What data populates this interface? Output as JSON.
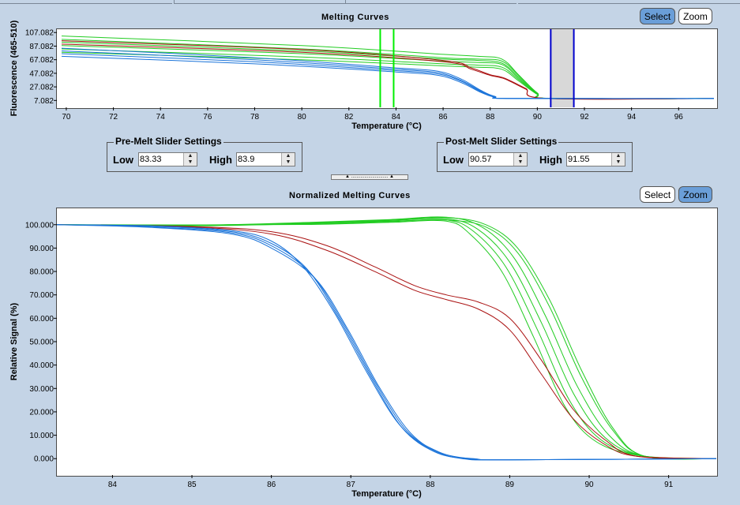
{
  "top_chart": {
    "title": "Melting Curves",
    "ylabel": "Fluorescence (465-510)",
    "xlabel": "Temperature (°C)",
    "select_label": "Select",
    "zoom_label": "Zoom",
    "active_mode": "select"
  },
  "pre_melt": {
    "title": "Pre-Melt Slider Settings",
    "low_label": "Low",
    "low_value": "83.33",
    "high_label": "High",
    "high_value": "83.9"
  },
  "post_melt": {
    "title": "Post-Melt Slider Settings",
    "low_label": "Low",
    "low_value": "90.57",
    "high_label": "High",
    "high_value": "91.55"
  },
  "splitter_label": "▲ ............................ ▲",
  "bottom_chart": {
    "title": "Normalized Melting Curves",
    "ylabel": "Relative Signal (%)",
    "xlabel": "Temperature (°C)",
    "select_label": "Select",
    "zoom_label": "Zoom",
    "active_mode": "zoom"
  },
  "colors": {
    "green": "#22cc22",
    "blue": "#1a73d9",
    "red": "#aa1111",
    "slider_green": "#00ee00",
    "slider_blue": "#0000cc",
    "shade": "#d8d8d8"
  },
  "chart_data": [
    {
      "type": "line",
      "title": "Melting Curves",
      "xlabel": "Temperature (°C)",
      "ylabel": "Fluorescence (465-510)",
      "xlim": [
        69.6,
        97.6
      ],
      "ylim": [
        -3,
        112
      ],
      "x_ticks": [
        70,
        72,
        74,
        76,
        78,
        80,
        82,
        84,
        86,
        88,
        90,
        92,
        94,
        96
      ],
      "y_ticks": [
        7.082,
        27.082,
        47.082,
        67.082,
        87.082,
        107.082
      ],
      "y_tick_labels": [
        "7.082",
        "27.082",
        "47.082",
        "67.082",
        "87.082",
        "107.082"
      ],
      "pre_melt_sliders": [
        83.33,
        83.9
      ],
      "post_melt_sliders": [
        90.57,
        91.55
      ],
      "series": [
        {
          "color": "green",
          "x": [
            69.8,
            80,
            86,
            87.5,
            88.5,
            89.2,
            90,
            90.6,
            97.5
          ],
          "y": [
            102,
            88,
            75,
            72,
            68,
            45,
            18,
            10,
            10
          ]
        },
        {
          "color": "green",
          "x": [
            69.8,
            80,
            86,
            87.5,
            88.5,
            89.2,
            90,
            90.6,
            97.5
          ],
          "y": [
            97,
            83,
            70,
            68,
            65,
            44,
            18,
            10,
            10
          ]
        },
        {
          "color": "green",
          "x": [
            69.8,
            80,
            86,
            87.5,
            88.5,
            89.2,
            90,
            90.6,
            97.5
          ],
          "y": [
            93,
            80,
            68,
            66,
            62,
            42,
            17,
            10,
            10
          ]
        },
        {
          "color": "green",
          "x": [
            69.8,
            80,
            86,
            87.5,
            88.5,
            89.2,
            90,
            90.6,
            97.5
          ],
          "y": [
            88,
            76,
            65,
            63,
            60,
            40,
            17,
            10,
            10
          ]
        },
        {
          "color": "green",
          "x": [
            69.8,
            80,
            86,
            87.5,
            88.5,
            89.2,
            90,
            90.6,
            97.5
          ],
          "y": [
            83,
            71,
            61,
            59,
            56,
            38,
            16,
            10,
            10
          ]
        },
        {
          "color": "green",
          "x": [
            69.8,
            80,
            86,
            87.5,
            88.5,
            89.2,
            90,
            90.6,
            97.5
          ],
          "y": [
            78,
            67,
            58,
            56,
            53,
            36,
            16,
            10,
            10
          ]
        },
        {
          "color": "red",
          "x": [
            69.8,
            80,
            86,
            87.2,
            88,
            88.6,
            89.5,
            90.4,
            97.5
          ],
          "y": [
            95,
            82,
            66,
            55,
            45,
            40,
            25,
            10,
            10
          ]
        },
        {
          "color": "red",
          "x": [
            69.8,
            80,
            86,
            87.2,
            88,
            88.6,
            89.5,
            90.4,
            97.5
          ],
          "y": [
            90,
            78,
            64,
            53,
            44,
            39,
            24,
            10,
            10
          ]
        },
        {
          "color": "blue",
          "x": [
            69.8,
            78,
            84,
            85.8,
            86.8,
            87.6,
            88.2,
            89,
            97.5
          ],
          "y": [
            84,
            70,
            55,
            50,
            38,
            22,
            13,
            10,
            10
          ]
        },
        {
          "color": "blue",
          "x": [
            69.8,
            78,
            84,
            85.8,
            86.8,
            87.6,
            88.2,
            89,
            97.5
          ],
          "y": [
            80,
            67,
            53,
            48,
            36,
            21,
            13,
            10,
            10
          ]
        },
        {
          "color": "blue",
          "x": [
            69.8,
            78,
            84,
            85.8,
            86.8,
            87.6,
            88.2,
            89,
            97.5
          ],
          "y": [
            76,
            64,
            51,
            46,
            35,
            20,
            12,
            10,
            10
          ]
        },
        {
          "color": "blue",
          "x": [
            69.8,
            78,
            84,
            85.8,
            86.8,
            87.6,
            88.2,
            89,
            97.5
          ],
          "y": [
            72,
            61,
            49,
            44,
            33,
            19,
            12,
            10,
            10
          ]
        }
      ]
    },
    {
      "type": "line",
      "title": "Normalized Melting Curves",
      "xlabel": "Temperature (°C)",
      "ylabel": "Relative Signal (%)",
      "xlim": [
        83.3,
        91.6
      ],
      "ylim": [
        -7,
        107
      ],
      "x_ticks": [
        84,
        85,
        86,
        87,
        88,
        89,
        90,
        91
      ],
      "y_ticks": [
        0,
        10,
        20,
        30,
        40,
        50,
        60,
        70,
        80,
        90,
        100
      ],
      "y_tick_labels": [
        "0.000",
        "10.000",
        "20.000",
        "30.000",
        "40.000",
        "50.000",
        "60.000",
        "70.000",
        "80.000",
        "90.000",
        "100.000"
      ],
      "series": [
        {
          "color": "green",
          "x": [
            83.3,
            85,
            86.5,
            87.5,
            88.2,
            88.7,
            89.1,
            89.5,
            89.9,
            90.3,
            90.7,
            91.6
          ],
          "y": [
            100,
            99.5,
            100.5,
            101.5,
            102,
            99,
            88,
            65,
            35,
            12,
            1,
            0
          ]
        },
        {
          "color": "green",
          "x": [
            83.3,
            85,
            86.5,
            87.5,
            88.2,
            88.7,
            89.1,
            89.5,
            89.9,
            90.3,
            90.7,
            91.6
          ],
          "y": [
            100,
            99.6,
            100.8,
            102,
            103,
            100,
            90,
            68,
            38,
            13,
            1,
            0
          ]
        },
        {
          "color": "green",
          "x": [
            83.3,
            85,
            86.5,
            87.5,
            88.2,
            88.65,
            89.05,
            89.45,
            89.85,
            90.25,
            90.7,
            91.6
          ],
          "y": [
            100,
            99.7,
            101,
            102.2,
            103.2,
            99,
            86,
            61,
            31,
            10,
            1,
            0
          ]
        },
        {
          "color": "green",
          "x": [
            83.3,
            85,
            86.5,
            87.5,
            88.2,
            88.6,
            89,
            89.4,
            89.8,
            90.2,
            90.7,
            91.6
          ],
          "y": [
            100,
            99.8,
            100.6,
            101.8,
            102.5,
            98,
            84,
            58,
            28,
            9,
            1,
            0
          ]
        },
        {
          "color": "green",
          "x": [
            83.3,
            85,
            86.5,
            87.5,
            88.2,
            88.55,
            88.95,
            89.35,
            89.75,
            90.15,
            90.7,
            91.6
          ],
          "y": [
            100,
            99.9,
            100.3,
            101.3,
            102,
            97,
            82,
            55,
            25,
            8,
            1,
            0
          ]
        },
        {
          "color": "green",
          "x": [
            83.3,
            85,
            86.5,
            87.5,
            88.2,
            88.5,
            88.9,
            89.3,
            89.7,
            90.1,
            90.7,
            91.6
          ],
          "y": [
            100,
            99.9,
            100.1,
            101,
            101.5,
            96,
            80,
            52,
            22,
            7,
            1,
            0
          ]
        },
        {
          "color": "red",
          "x": [
            83.3,
            85,
            86,
            86.7,
            87.3,
            87.8,
            88.2,
            88.6,
            89,
            89.4,
            89.8,
            90.2,
            90.6,
            91.6
          ],
          "y": [
            100,
            99,
            96,
            89,
            80,
            72,
            68,
            64,
            55,
            36,
            17,
            6,
            1,
            0
          ]
        },
        {
          "color": "red",
          "x": [
            83.3,
            85,
            86,
            86.7,
            87.3,
            87.8,
            88.2,
            88.6,
            89,
            89.4,
            89.8,
            90.2,
            90.6,
            91.6
          ],
          "y": [
            100,
            99.2,
            97,
            91,
            82,
            74,
            70,
            67,
            60,
            42,
            21,
            8,
            1,
            0
          ]
        },
        {
          "color": "blue",
          "x": [
            83.3,
            84.5,
            85.5,
            86,
            86.4,
            86.8,
            87.2,
            87.6,
            88,
            88.4,
            89,
            91.6
          ],
          "y": [
            100,
            99.5,
            97.5,
            93,
            82,
            62,
            37,
            15,
            4,
            0,
            -0.5,
            0
          ]
        },
        {
          "color": "blue",
          "x": [
            83.3,
            84.5,
            85.5,
            86,
            86.45,
            86.85,
            87.25,
            87.65,
            88.05,
            88.45,
            89,
            91.6
          ],
          "y": [
            100,
            99.3,
            97,
            92,
            81,
            60,
            35,
            13,
            3,
            0,
            -0.5,
            0
          ]
        },
        {
          "color": "blue",
          "x": [
            83.3,
            84.5,
            85.5,
            86,
            86.5,
            86.9,
            87.3,
            87.7,
            88.1,
            88.5,
            89,
            91.6
          ],
          "y": [
            100,
            99,
            96.5,
            91,
            79,
            58,
            33,
            12,
            3,
            0,
            -0.5,
            0
          ]
        },
        {
          "color": "blue",
          "x": [
            83.3,
            84.5,
            85.5,
            86,
            86.55,
            86.95,
            87.35,
            87.75,
            88.15,
            88.55,
            89,
            91.6
          ],
          "y": [
            100,
            98.8,
            96,
            90,
            77,
            56,
            31,
            11,
            2,
            0,
            -0.5,
            0
          ]
        }
      ]
    }
  ]
}
